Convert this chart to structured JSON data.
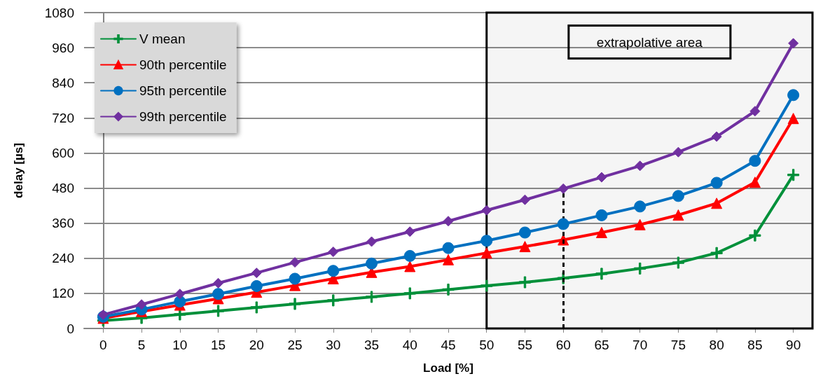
{
  "chart_data": {
    "type": "line",
    "xlabel": "Load [%]",
    "ylabel": "delay [µs]",
    "x": [
      0,
      5,
      10,
      15,
      20,
      25,
      30,
      35,
      40,
      45,
      50,
      55,
      60,
      65,
      70,
      75,
      80,
      85,
      90
    ],
    "xlim": [
      -2.5,
      92.5
    ],
    "xticks": [
      0,
      5,
      10,
      15,
      20,
      25,
      30,
      35,
      40,
      45,
      50,
      55,
      60,
      65,
      70,
      75,
      80,
      85,
      90
    ],
    "ylim": [
      0,
      1080
    ],
    "yticks": [
      0,
      120,
      240,
      360,
      480,
      600,
      720,
      840,
      960,
      1080
    ],
    "grid": "y",
    "legend": "top left",
    "line_style": "solid",
    "series": [
      {
        "name": "V mean",
        "color": "#00903a",
        "marker": "cross",
        "values": [
          27,
          36,
          48,
          60,
          72,
          84,
          96,
          108,
          120,
          133,
          146,
          158,
          172,
          187,
          205,
          225,
          258,
          318,
          525
        ]
      },
      {
        "name": "90th percentile",
        "color": "#ff0000",
        "marker": "triangle",
        "values": [
          35,
          58,
          80,
          102,
          124,
          147,
          170,
          192,
          212,
          235,
          258,
          280,
          303,
          328,
          355,
          388,
          428,
          500,
          718
        ]
      },
      {
        "name": "95th percentile",
        "color": "#0070c0",
        "marker": "circle",
        "values": [
          40,
          65,
          92,
          118,
          145,
          170,
          197,
          222,
          248,
          275,
          300,
          328,
          357,
          387,
          417,
          453,
          498,
          573,
          798
        ]
      },
      {
        "name": "99th percentile",
        "color": "#7030a0",
        "marker": "diamond",
        "values": [
          47,
          82,
          118,
          155,
          190,
          226,
          262,
          297,
          331,
          367,
          404,
          440,
          478,
          517,
          556,
          603,
          656,
          743,
          975
        ]
      }
    ],
    "bands": [
      {
        "axis": "x",
        "from": 50,
        "to": 92.5,
        "label": "extrapolative area",
        "color": "#000000"
      }
    ],
    "ref_lines": [
      {
        "axis": "x",
        "value": 60,
        "label": null,
        "color": "#000000",
        "line_style": "dashed"
      }
    ]
  }
}
